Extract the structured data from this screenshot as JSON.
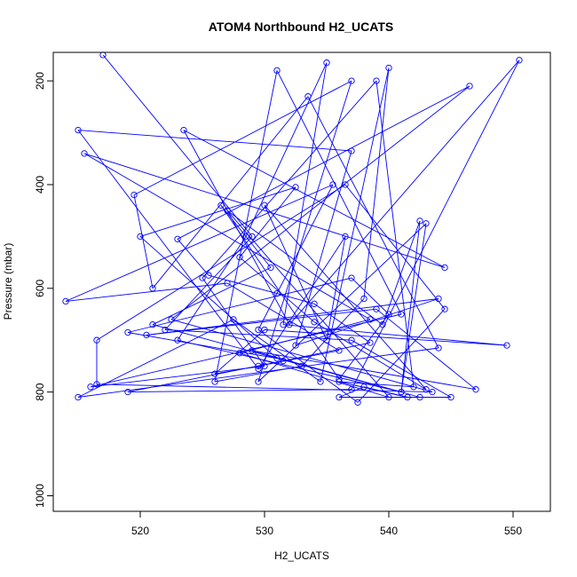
{
  "chart_data": {
    "type": "line",
    "title": "ATOM4 Northbound H2_UCATS",
    "xlabel": "H2_UCATS",
    "ylabel": "Pressure (mbar)",
    "xlim": [
      513,
      553
    ],
    "ylim": [
      1030,
      145
    ],
    "y_reversed": true,
    "grid": false,
    "x_ticks": [
      520,
      530,
      540,
      550
    ],
    "y_ticks": [
      200,
      400,
      600,
      800,
      1000
    ],
    "series_color": "#0000ff",
    "series": [
      {
        "marker": "open-circle",
        "points": [
          [
            517.0,
            150
          ],
          [
            529.0,
            500
          ],
          [
            522.0,
            680
          ],
          [
            537.0,
            700
          ],
          [
            545.0,
            810
          ],
          [
            536.0,
            810
          ],
          [
            538.0,
            790
          ],
          [
            541.5,
            810
          ],
          [
            536.0,
            780
          ],
          [
            542.0,
            790
          ],
          [
            539.0,
            200
          ],
          [
            525.0,
            580
          ],
          [
            530.0,
            750
          ],
          [
            516.0,
            790
          ],
          [
            541.0,
            650
          ],
          [
            531.0,
            180
          ],
          [
            526.0,
            780
          ],
          [
            533.0,
            750
          ],
          [
            538.0,
            620
          ],
          [
            540.0,
            175
          ],
          [
            534.5,
            780
          ],
          [
            527.5,
            660
          ],
          [
            515.0,
            810
          ],
          [
            544.0,
            715
          ],
          [
            533.5,
            230
          ],
          [
            521.0,
            600
          ],
          [
            519.5,
            420
          ],
          [
            537.0,
            200
          ],
          [
            529.5,
            780
          ],
          [
            543.0,
            475
          ],
          [
            541.0,
            800
          ],
          [
            523.0,
            700
          ],
          [
            528.5,
            500
          ],
          [
            535.0,
            165
          ],
          [
            531.5,
            670
          ],
          [
            549.5,
            710
          ],
          [
            530.0,
            680
          ],
          [
            526.0,
            765
          ],
          [
            529.5,
            750
          ],
          [
            536.0,
            720
          ],
          [
            527.0,
            590
          ],
          [
            514.0,
            625
          ],
          [
            535.5,
            400
          ],
          [
            529.5,
            680
          ],
          [
            537.5,
            820
          ],
          [
            544.5,
            640
          ],
          [
            536.5,
            400
          ],
          [
            516.5,
            700
          ],
          [
            516.5,
            785
          ],
          [
            543.5,
            800
          ],
          [
            522.5,
            660
          ],
          [
            546.5,
            210
          ],
          [
            523.0,
            505
          ],
          [
            525.5,
            575
          ],
          [
            531.0,
            610
          ],
          [
            534.0,
            630
          ],
          [
            538.5,
            705
          ],
          [
            531.5,
            740
          ],
          [
            519.0,
            800
          ],
          [
            537.0,
            795
          ],
          [
            550.5,
            160
          ],
          [
            532.0,
            670
          ],
          [
            523.5,
            295
          ],
          [
            544.5,
            560
          ],
          [
            515.5,
            340
          ],
          [
            538.5,
            660
          ],
          [
            528.0,
            725
          ],
          [
            540.0,
            810
          ],
          [
            527.0,
            450
          ],
          [
            539.5,
            670
          ],
          [
            542.5,
            470
          ],
          [
            541.0,
            800
          ],
          [
            521.0,
            670
          ],
          [
            530.5,
            560
          ],
          [
            526.5,
            440
          ],
          [
            536.0,
            775
          ],
          [
            540.0,
            650
          ],
          [
            537.0,
            580
          ],
          [
            519.0,
            685
          ],
          [
            531.0,
            735
          ],
          [
            520.0,
            500
          ],
          [
            532.5,
            405
          ],
          [
            528.0,
            540
          ],
          [
            534.0,
            665
          ],
          [
            543.0,
            795
          ],
          [
            530.0,
            440
          ],
          [
            535.0,
            700
          ],
          [
            536.5,
            500
          ],
          [
            529.5,
            755
          ],
          [
            515.0,
            295
          ],
          [
            537.0,
            335
          ],
          [
            532.5,
            710
          ],
          [
            544.0,
            620
          ],
          [
            520.5,
            690
          ],
          [
            539.0,
            640
          ],
          [
            547.0,
            795
          ],
          [
            529.0,
            720
          ],
          [
            542.5,
            810
          ]
        ]
      }
    ]
  }
}
